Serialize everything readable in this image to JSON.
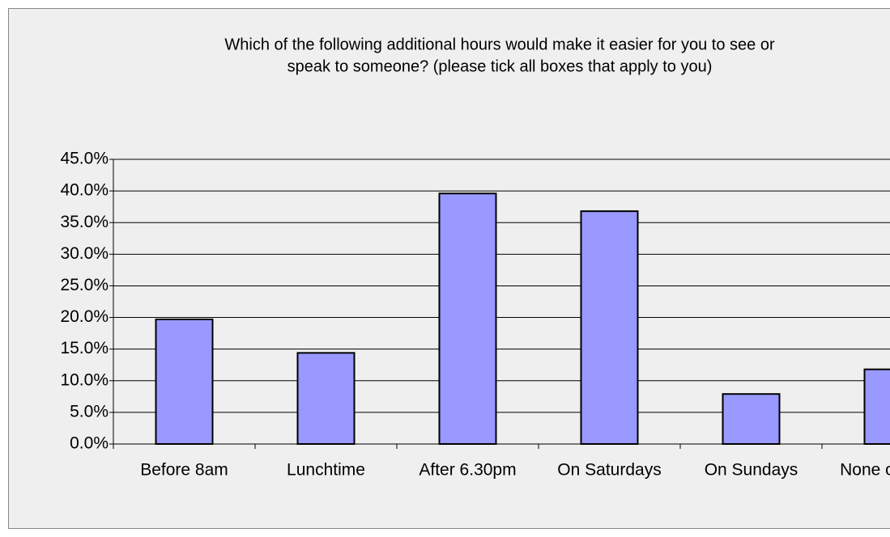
{
  "chart_data": {
    "type": "bar",
    "title": [
      "Which of the following additional hours would make it easier for you to see or",
      "speak to someone? (please tick all boxes that apply to you)"
    ],
    "categories": [
      "Before 8am",
      "Lunchtime",
      "After 6.30pm",
      "On Saturdays",
      "On Sundays",
      "None of these"
    ],
    "values": [
      19.7,
      14.4,
      39.6,
      36.8,
      7.9,
      11.8
    ],
    "color": "#9999ff",
    "ylim": [
      0,
      45
    ],
    "yticks": [
      {
        "value": 0,
        "label": "0.0%"
      },
      {
        "value": 5,
        "label": "5.0%"
      },
      {
        "value": 10,
        "label": "10.0%"
      },
      {
        "value": 15,
        "label": "15.0%"
      },
      {
        "value": 20,
        "label": "20.0%"
      },
      {
        "value": 25,
        "label": "25.0%"
      },
      {
        "value": 30,
        "label": "30.0%"
      },
      {
        "value": 35,
        "label": "35.0%"
      },
      {
        "value": 40,
        "label": "40.0%"
      },
      {
        "value": 45,
        "label": "45.0%"
      }
    ],
    "grid": true
  }
}
